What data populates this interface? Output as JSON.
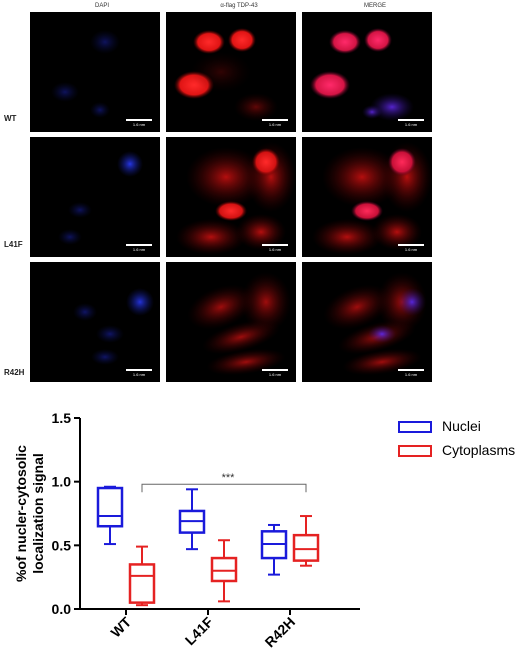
{
  "figure": {
    "columns": [
      "DAPI",
      "α-flag TDP-43",
      "MERGE"
    ],
    "rows": [
      "WT",
      "L41F",
      "R42H"
    ],
    "scale_bar_label": "1.6 nm"
  },
  "colors": {
    "nuclei": "#1a1adb",
    "cytoplasms": "#e52222",
    "dapi": "#1e2cff",
    "tdp": "#ff1e1e"
  },
  "chart_data": {
    "type": "box",
    "categories": [
      "WT",
      "L41F",
      "R42H"
    ],
    "ylabel": "%of nucler-cytosolic localization signal",
    "ylim": [
      0,
      1.5
    ],
    "yticks": [
      "0.0",
      "0.5",
      "1.0",
      "1.5"
    ],
    "series": [
      {
        "name": "Nuclei",
        "color": "#1a1adb",
        "boxes": [
          {
            "min": 0.51,
            "q1": 0.65,
            "median": 0.73,
            "q3": 0.95,
            "max": 0.96
          },
          {
            "min": 0.47,
            "q1": 0.6,
            "median": 0.69,
            "q3": 0.77,
            "max": 0.94
          },
          {
            "min": 0.27,
            "q1": 0.4,
            "median": 0.51,
            "q3": 0.61,
            "max": 0.66
          }
        ]
      },
      {
        "name": "Cytoplasms",
        "color": "#e52222",
        "boxes": [
          {
            "min": 0.03,
            "q1": 0.05,
            "median": 0.26,
            "q3": 0.35,
            "max": 0.49
          },
          {
            "min": 0.06,
            "q1": 0.22,
            "median": 0.3,
            "q3": 0.4,
            "max": 0.54
          },
          {
            "min": 0.34,
            "q1": 0.38,
            "median": 0.47,
            "q3": 0.58,
            "max": 0.73
          }
        ]
      }
    ],
    "annotation": {
      "text": "***",
      "from": "WT",
      "to": "R42H",
      "y": 0.98
    }
  }
}
